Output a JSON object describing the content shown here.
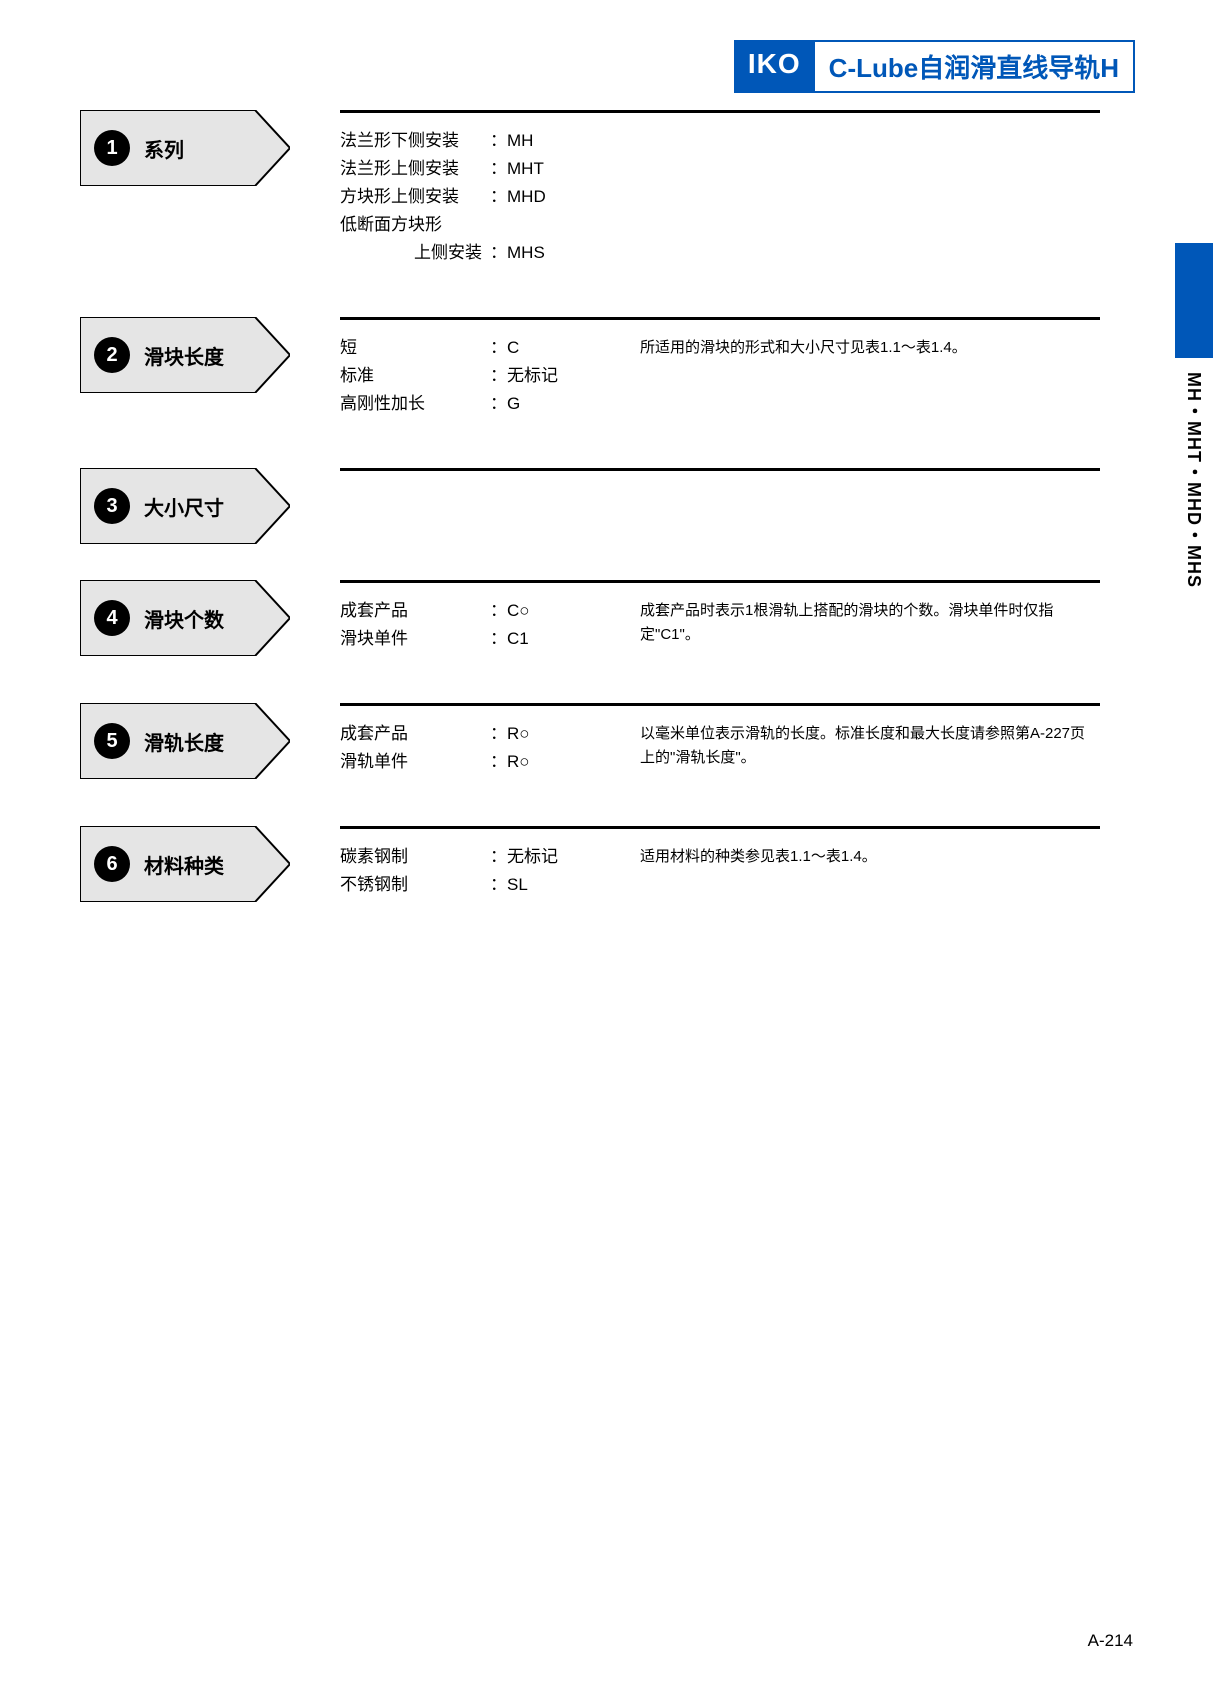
{
  "header": {
    "logo": "IKO",
    "title": "C-Lube自润滑直线导轨H",
    "logo_bg": "#0057b8",
    "title_color": "#0057b8"
  },
  "side": {
    "text": "MH・MHT・MHD・MHS"
  },
  "sections": [
    {
      "num": "1",
      "label": "系列",
      "options": [
        {
          "label": "法兰形下侧安装",
          "code": "：MH"
        },
        {
          "label": "法兰形上侧安装",
          "code": "：MHT"
        },
        {
          "label": "方块形上侧安装",
          "code": "：MHD"
        },
        {
          "label": "低断面方块形",
          "code": ""
        },
        {
          "label_indent": "上侧安装",
          "code": "：MHS"
        }
      ],
      "note": ""
    },
    {
      "num": "2",
      "label": "滑块长度",
      "options": [
        {
          "label": "短",
          "code": "：C"
        },
        {
          "label": "标准",
          "code": "：无标记"
        },
        {
          "label": "高刚性加长",
          "code": "：G"
        }
      ],
      "note": "所适用的滑块的形式和大小尺寸见表1.1～表1.4。"
    },
    {
      "num": "3",
      "label": "大小尺寸",
      "options": [],
      "note": ""
    },
    {
      "num": "4",
      "label": "滑块个数",
      "options": [
        {
          "label": "成套产品",
          "code": "：C○"
        },
        {
          "label": "滑块单件",
          "code": "：C1"
        }
      ],
      "note": "成套产品时表示1根滑轨上搭配的滑块的个数。滑块单件时仅指定\"C1\"。"
    },
    {
      "num": "5",
      "label": "滑轨长度",
      "options": [
        {
          "label": "成套产品",
          "code": "：R○"
        },
        {
          "label": "滑轨单件",
          "code": "：R○"
        }
      ],
      "note": "以毫米单位表示滑轨的长度。标准长度和最大长度请参照第A-227页上的\"滑轨长度\"。"
    },
    {
      "num": "6",
      "label": "材料种类",
      "options": [
        {
          "label": "碳素钢制",
          "code": "：无标记"
        },
        {
          "label": "不锈钢制",
          "code": "：SL"
        }
      ],
      "note": "适用材料的种类参见表1.1～表1.4。"
    }
  ],
  "page_number": "A-214",
  "colors": {
    "pentagon_fill": "#e5e5e5",
    "pentagon_stroke": "#000000"
  }
}
